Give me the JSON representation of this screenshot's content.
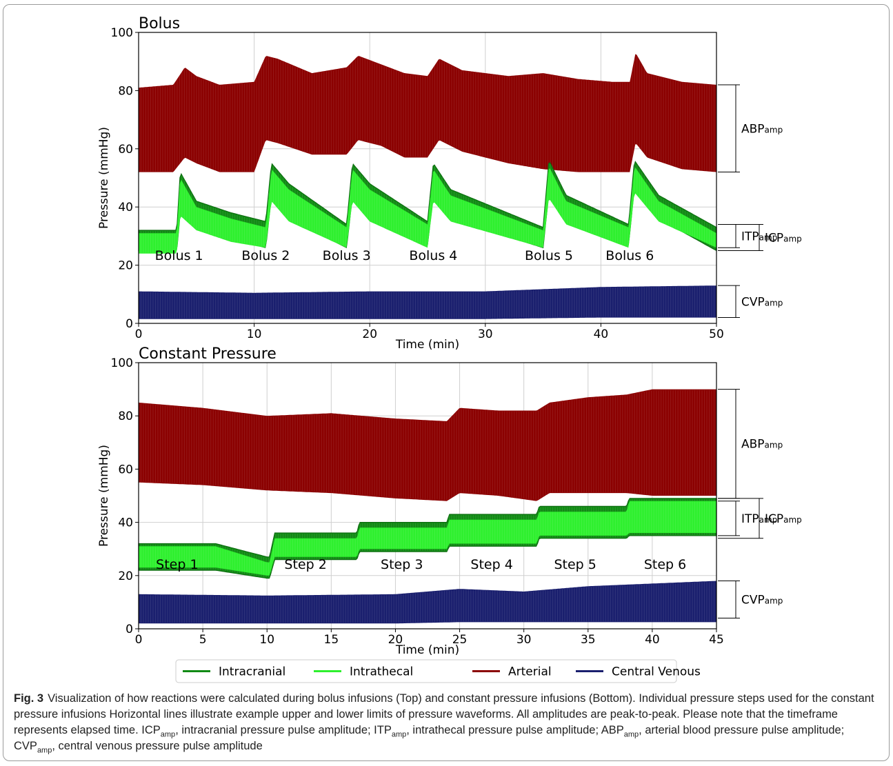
{
  "chart_data": [
    {
      "type": "line",
      "title": "Bolus",
      "xlabel": "Time (min)",
      "ylabel": "Pressure (mmHg)",
      "xlim": [
        0,
        50
      ],
      "ylim": [
        0,
        100
      ],
      "xticks": [
        "0",
        "10",
        "20",
        "30",
        "40",
        "50"
      ],
      "yticks": [
        "0",
        "20",
        "40",
        "60",
        "80",
        "100"
      ],
      "grid": true,
      "events": [
        {
          "label": "Bolus 1",
          "x": 3.5
        },
        {
          "label": "Bolus 2",
          "x": 11.0
        },
        {
          "label": "Bolus 3",
          "x": 18.0
        },
        {
          "label": "Bolus 4",
          "x": 25.5
        },
        {
          "label": "Bolus 5",
          "x": 35.5
        },
        {
          "label": "Bolus 6",
          "x": 42.5
        }
      ],
      "series": [
        {
          "name": "Arterial",
          "color": "#8b0000",
          "x": [
            0,
            3,
            4,
            5,
            7,
            10,
            11,
            12,
            15,
            18,
            19,
            21,
            23,
            25,
            26,
            28,
            32,
            35,
            38,
            41,
            42.5,
            43,
            44,
            47,
            50
          ],
          "upper": [
            81,
            82,
            88,
            85,
            82,
            83,
            92,
            91,
            86,
            88,
            92,
            89,
            86,
            85,
            91,
            87,
            85,
            86,
            84,
            83,
            83,
            93,
            86,
            83,
            82
          ],
          "lower": [
            52,
            52,
            57,
            55,
            52,
            52,
            63,
            62,
            58,
            58,
            63,
            61,
            57,
            57,
            63,
            59,
            55,
            53,
            52,
            52,
            52,
            62,
            57,
            53,
            52
          ]
        },
        {
          "name": "Intracranial",
          "color": "#118a14",
          "x": [
            0,
            3.3,
            3.6,
            5,
            8,
            11,
            11.5,
            13,
            18,
            18.5,
            20,
            25,
            25.5,
            27,
            35,
            35.5,
            37,
            42.4,
            42.9,
            45,
            50
          ],
          "upper": [
            32,
            32,
            52,
            42,
            38,
            35,
            55,
            48,
            34,
            55,
            48,
            35,
            55,
            46,
            33,
            56,
            44,
            34,
            56,
            44,
            33
          ],
          "lower": [
            25,
            25,
            38,
            33,
            29,
            26,
            44,
            36,
            26,
            44,
            37,
            27,
            44,
            36,
            26,
            45,
            35,
            27,
            47,
            36,
            25
          ]
        },
        {
          "name": "Intrathecal",
          "color": "#2ef02e",
          "x": [
            0,
            3.3,
            3.6,
            5,
            8,
            11,
            11.5,
            13,
            18,
            18.5,
            20,
            25,
            25.5,
            27,
            35,
            35.5,
            37,
            42.4,
            42.9,
            45,
            50
          ],
          "upper": [
            31,
            31,
            50,
            40,
            36,
            33,
            53,
            46,
            33,
            53,
            46,
            34,
            53,
            44,
            32,
            54,
            42,
            33,
            54,
            42,
            31
          ],
          "lower": [
            24,
            24,
            37,
            32,
            28,
            26,
            42,
            35,
            26,
            42,
            35,
            26,
            42,
            35,
            26,
            43,
            34,
            26,
            45,
            35,
            26
          ]
        },
        {
          "name": "Central Venous",
          "color": "#1a1f6e",
          "x": [
            0,
            10,
            20,
            30,
            40,
            50
          ],
          "upper": [
            11,
            10.5,
            11,
            11,
            12.5,
            13
          ],
          "lower": [
            1.5,
            1.5,
            1.5,
            1.5,
            2,
            2
          ]
        }
      ]
    },
    {
      "type": "line",
      "title": "Constant Pressure",
      "xlabel": "Time (min)",
      "ylabel": "Pressure (mmHg)",
      "xlim": [
        0,
        45
      ],
      "ylim": [
        0,
        100
      ],
      "xticks": [
        "0",
        "5",
        "10",
        "15",
        "20",
        "25",
        "30",
        "35",
        "40",
        "45"
      ],
      "yticks": [
        "0",
        "20",
        "40",
        "60",
        "80",
        "100"
      ],
      "grid": true,
      "events": [
        {
          "label": "Step 1",
          "x": 3.0
        },
        {
          "label": "Step 2",
          "x": 13.0
        },
        {
          "label": "Step 3",
          "x": 20.5
        },
        {
          "label": "Step 4",
          "x": 27.5
        },
        {
          "label": "Step 5",
          "x": 34.0
        },
        {
          "label": "Step 6",
          "x": 41.0
        }
      ],
      "series": [
        {
          "name": "Arterial",
          "color": "#8b0000",
          "x": [
            0,
            5,
            10,
            15,
            20,
            24,
            25,
            28,
            31,
            32,
            35,
            38,
            40,
            45
          ],
          "upper": [
            85,
            83,
            80,
            81,
            79,
            78,
            83,
            82,
            82,
            85,
            87,
            88,
            90,
            90
          ],
          "lower": [
            55,
            54,
            52,
            51,
            49,
            48,
            51,
            50,
            48,
            51,
            51,
            51,
            50,
            50
          ]
        },
        {
          "name": "Intracranial",
          "color": "#118a14",
          "x": [
            0,
            6,
            10,
            10.2,
            10.6,
            17,
            17.2,
            24,
            24.2,
            31,
            31.2,
            38,
            38.2,
            45
          ],
          "upper": [
            32,
            32,
            27,
            27,
            36,
            36,
            40,
            40,
            43,
            43,
            46,
            46,
            49,
            49
          ],
          "lower": [
            22,
            22,
            19,
            19,
            26,
            26,
            29,
            29,
            31,
            31,
            34,
            34,
            35,
            35
          ]
        },
        {
          "name": "Intrathecal",
          "color": "#2ef02e",
          "x": [
            0,
            6,
            10,
            10.2,
            10.6,
            17,
            17.2,
            24,
            24.2,
            31,
            31.2,
            38,
            38.2,
            45
          ],
          "upper": [
            31,
            31,
            25,
            25,
            34,
            34,
            38,
            38,
            41,
            41,
            44,
            44,
            48,
            48
          ],
          "lower": [
            23,
            23,
            20,
            20,
            27,
            27,
            30,
            30,
            32,
            32,
            35,
            35,
            36,
            36
          ]
        },
        {
          "name": "Central Venous",
          "color": "#1a1f6e",
          "x": [
            0,
            10,
            20,
            25,
            30,
            35,
            40,
            45
          ],
          "upper": [
            13,
            12.5,
            13,
            15,
            14,
            16,
            17,
            18
          ],
          "lower": [
            2,
            2,
            2,
            2.5,
            2.5,
            2.5,
            2.5,
            2.5
          ]
        }
      ]
    }
  ],
  "annotations": [
    {
      "panel": 0,
      "label": "ABP",
      "sub": "amp",
      "top": 82,
      "bottom": 52,
      "pos": "right"
    },
    {
      "panel": 0,
      "label": "ITP",
      "sub": "amp",
      "top": 34,
      "bottom": 26,
      "pos": "right"
    },
    {
      "panel": 0,
      "label": "ICP",
      "sub": "amp",
      "top": 34,
      "bottom": 25,
      "pos": "far-right"
    },
    {
      "panel": 0,
      "label": "CVP",
      "sub": "amp",
      "top": 13,
      "bottom": 2,
      "pos": "right"
    },
    {
      "panel": 1,
      "label": "ABP",
      "sub": "amp",
      "top": 90,
      "bottom": 49,
      "pos": "right"
    },
    {
      "panel": 1,
      "label": "ITP",
      "sub": "amp",
      "top": 48,
      "bottom": 35,
      "pos": "right"
    },
    {
      "panel": 1,
      "label": "ICP",
      "sub": "amp",
      "top": 49,
      "bottom": 34,
      "pos": "far-right"
    },
    {
      "panel": 1,
      "label": "CVP",
      "sub": "amp",
      "top": 18,
      "bottom": 4,
      "pos": "right"
    }
  ],
  "legend": {
    "placement": "bottom-center",
    "items": [
      {
        "name": "Intracranial",
        "color": "#118a14"
      },
      {
        "name": "Intrathecal",
        "color": "#2ef02e"
      },
      {
        "name": "Arterial",
        "color": "#8b0000"
      },
      {
        "name": "Central Venous",
        "color": "#1a1f6e"
      }
    ]
  },
  "caption": {
    "fig": "Fig. 3",
    "p1": "Visualization of how reactions were calculated during bolus infusions (Top) and constant pressure infusions (Bottom). Individual pressure steps used for the constant pressure infusions Horizontal lines illustrate example upper and lower limits of pressure waveforms. All amplitudes are peak-to-peak. Please note that the timeframe represents elapsed time. ICP",
    "sub1": "amp",
    "p2": ", intracranial pressure pulse amplitude; ITP",
    "sub2": "amp",
    "p3": ", intrathecal pressure pulse amplitude; ABP",
    "sub3": "amp",
    "p4": ", arterial blood pressure pulse amplitude; CVP",
    "sub4": "amp",
    "p5": ", central venous pressure pulse amplitude"
  }
}
